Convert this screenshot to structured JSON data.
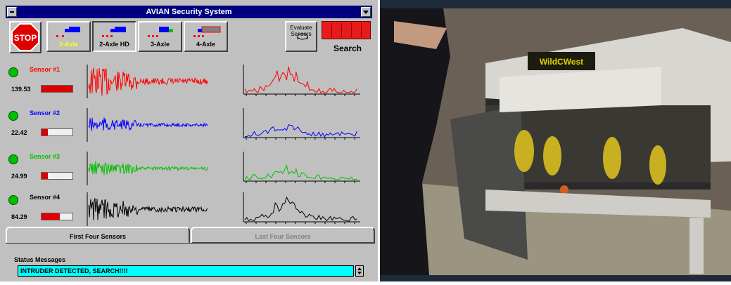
{
  "window": {
    "title": "AVIAN Security System"
  },
  "toolbar": {
    "stop_label": "STOP",
    "axles": [
      {
        "label": "2-Axle",
        "color": "#ffff00",
        "selected": true
      },
      {
        "label": "2-Axle HD",
        "color": "#000000",
        "selected": false
      },
      {
        "label": "3-Axle",
        "color": "#000000",
        "selected": false
      },
      {
        "label": "4-Axle",
        "color": "#000000",
        "selected": false
      }
    ],
    "evaluate_label": "Evaluate\nSensors",
    "search_label": "Search"
  },
  "sensors": [
    {
      "name": "Sensor #1",
      "value": "139.53",
      "level": 1.0,
      "color": "#ff0000"
    },
    {
      "name": "Sensor #2",
      "value": "22.42",
      "level": 0.2,
      "color": "#0000ff"
    },
    {
      "name": "Sensor #3",
      "value": "24.99",
      "level": 0.2,
      "color": "#00c000"
    },
    {
      "name": "Sensor #4",
      "value": "84.29",
      "level": 0.6,
      "color": "#000000"
    }
  ],
  "tabs": {
    "first": "First Four Sensors",
    "last": "Last Four Sensors"
  },
  "status": {
    "title": "Status Messages",
    "message": "INTRUDER DETECTED, SEARCH!!!!"
  },
  "photo": {
    "sign_text": "WildCWest"
  }
}
